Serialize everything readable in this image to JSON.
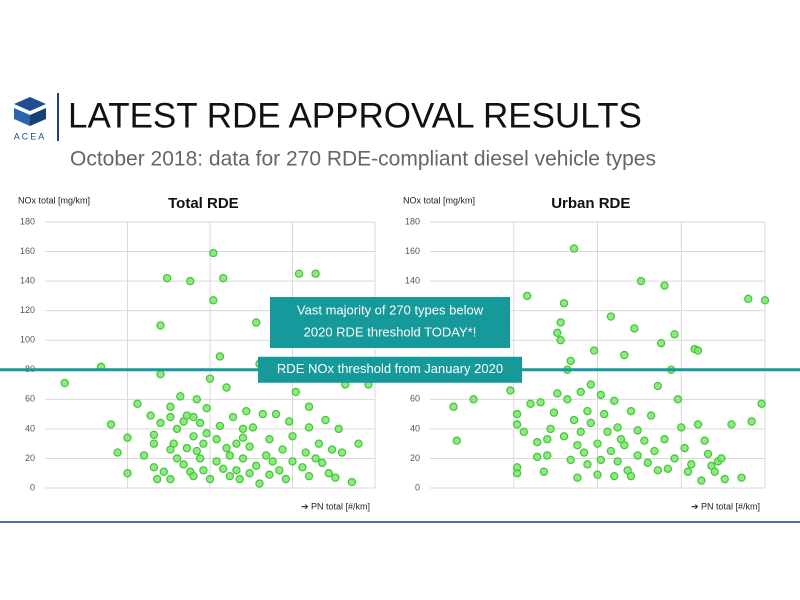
{
  "header": {
    "logo_text": "ACEA",
    "title": "LATEST RDE APPROVAL RESULTS",
    "subtitle": "October 2018: data for 270 RDE-compliant diesel vehicle types"
  },
  "annotations": [
    {
      "lines": [
        "Vast majority of 270 types below",
        "2020 RDE threshold TODAY*!"
      ]
    }
  ],
  "chart_data": [
    {
      "type": "scatter",
      "title": "Total RDE",
      "y_label": "NOx total [mg/km]",
      "x_label": "➔ PN total [#/km]",
      "color": "#78e66a",
      "grid": true,
      "ylim": [
        0,
        180
      ],
      "yticks": [
        0,
        20,
        40,
        60,
        80,
        100,
        120,
        140,
        160,
        180
      ],
      "xlim": [
        0,
        100
      ],
      "threshold": {
        "value": 80,
        "label": "RDE NOx threshold from January 2020",
        "color": "#16999a"
      },
      "x": [
        6,
        17,
        20,
        22,
        25,
        25,
        28,
        30,
        32,
        33,
        33,
        33,
        34,
        35,
        35,
        36,
        35,
        37,
        38,
        38,
        38,
        39,
        40,
        40,
        41,
        42,
        42,
        43,
        43,
        44,
        44,
        45,
        45,
        46,
        46,
        47,
        47,
        48,
        48,
        49,
        49,
        50,
        50,
        51,
        51,
        52,
        52,
        53,
        53,
        54,
        54,
        55,
        55,
        56,
        56,
        57,
        58,
        58,
        59,
        60,
        60,
        61,
        62,
        62,
        63,
        64,
        64,
        65,
        65,
        66,
        67,
        68,
        68,
        69,
        70,
        71,
        72,
        73,
        74,
        75,
        75,
        76,
        77,
        78,
        79,
        80,
        80,
        82,
        82,
        83,
        84,
        85,
        86,
        87,
        88,
        89,
        90,
        91,
        93,
        95,
        98,
        80,
        60,
        45,
        38
      ],
      "values": [
        71,
        82,
        43,
        24,
        10,
        34,
        57,
        22,
        49,
        14,
        36,
        30,
        6,
        77,
        44,
        11,
        110,
        142,
        6,
        26,
        55,
        30,
        20,
        40,
        62,
        45,
        16,
        27,
        49,
        11,
        140,
        35,
        48,
        60,
        25,
        20,
        44,
        12,
        30,
        54,
        37,
        74,
        6,
        127,
        159,
        18,
        33,
        89,
        42,
        142,
        13,
        68,
        27,
        22,
        8,
        48,
        30,
        12,
        6,
        34,
        20,
        52,
        10,
        28,
        41,
        15,
        112,
        84,
        3,
        50,
        22,
        9,
        33,
        18,
        50,
        12,
        26,
        6,
        45,
        35,
        18,
        65,
        145,
        14,
        24,
        8,
        41,
        20,
        145,
        30,
        17,
        46,
        10,
        26,
        7,
        40,
        24,
        70,
        4,
        30,
        70,
        55,
        40,
        8,
        48
      ]
    },
    {
      "type": "scatter",
      "title": "Urban RDE",
      "y_label": "NOx total [mg/km]",
      "x_label": "➔ PN total [#/km]",
      "color": "#78e66a",
      "grid": true,
      "ylim": [
        0,
        180
      ],
      "yticks": [
        0,
        20,
        40,
        60,
        80,
        100,
        120,
        140,
        160,
        180
      ],
      "xlim": [
        0,
        100
      ],
      "x": [
        7,
        8,
        13,
        24,
        26,
        26,
        26,
        26,
        28,
        29,
        30,
        32,
        32,
        33,
        34,
        35,
        35,
        36,
        37,
        38,
        38,
        39,
        39,
        40,
        40,
        41,
        41,
        42,
        42,
        43,
        43,
        44,
        44,
        45,
        45,
        46,
        47,
        47,
        48,
        48,
        49,
        50,
        50,
        51,
        51,
        52,
        53,
        54,
        54,
        55,
        55,
        56,
        56,
        57,
        58,
        58,
        59,
        60,
        60,
        61,
        62,
        62,
        63,
        64,
        65,
        66,
        67,
        68,
        68,
        69,
        70,
        70,
        71,
        72,
        73,
        73,
        74,
        75,
        76,
        77,
        78,
        79,
        80,
        80,
        81,
        82,
        83,
        84,
        85,
        86,
        87,
        88,
        90,
        93,
        96,
        95,
        99,
        100
      ],
      "values": [
        55,
        32,
        60,
        66,
        10,
        14,
        43,
        50,
        38,
        130,
        57,
        21,
        31,
        58,
        11,
        22,
        33,
        40,
        51,
        64,
        105,
        100,
        112,
        125,
        35,
        80,
        60,
        19,
        86,
        46,
        162,
        7,
        29,
        65,
        38,
        24,
        52,
        16,
        70,
        44,
        93,
        9,
        30,
        63,
        19,
        50,
        38,
        25,
        116,
        59,
        8,
        41,
        18,
        33,
        90,
        29,
        12,
        52,
        8,
        108,
        22,
        39,
        140,
        32,
        17,
        49,
        25,
        12,
        69,
        98,
        33,
        137,
        13,
        80,
        20,
        104,
        60,
        41,
        27,
        11,
        16,
        94,
        93,
        43,
        5,
        32,
        23,
        15,
        11,
        18,
        20,
        6,
        43,
        7,
        45,
        128,
        57,
        127
      ]
    }
  ]
}
